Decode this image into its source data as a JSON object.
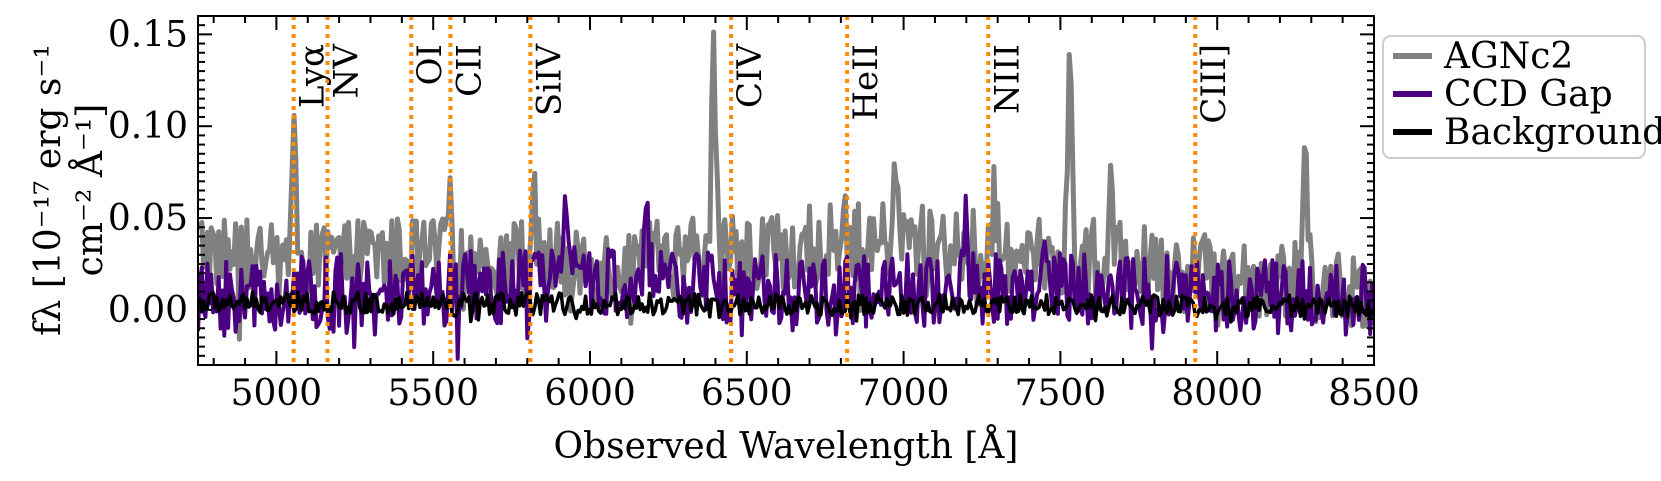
{
  "chart_data": {
    "type": "line",
    "xlabel": "Observed Wavelength [Å]",
    "ylabel_line1": "fλ [10⁻¹⁷ erg s⁻¹",
    "ylabel_line2": "cm⁻² Å⁻¹]",
    "xlim": [
      4750,
      8500
    ],
    "ylim": [
      -0.03,
      0.16
    ],
    "xticks": [
      5000,
      5500,
      6000,
      6500,
      7000,
      7500,
      8000,
      8500
    ],
    "yticks": [
      0.0,
      0.05,
      0.1,
      0.15
    ],
    "ytick_labels": [
      "0.00",
      "0.05",
      "0.10",
      "0.15"
    ],
    "legend_position": "outside-right",
    "series": [
      {
        "name": "AGNc2",
        "color": "#808080",
        "baseline": [
          [
            4750,
            0.035
          ],
          [
            5000,
            0.025
          ],
          [
            5300,
            0.03
          ],
          [
            5700,
            0.028
          ],
          [
            6100,
            0.025
          ],
          [
            6400,
            0.03
          ],
          [
            6700,
            0.035
          ],
          [
            7000,
            0.038
          ],
          [
            7300,
            0.032
          ],
          [
            7600,
            0.028
          ],
          [
            8000,
            0.02
          ],
          [
            8300,
            0.015
          ],
          [
            8500,
            0.01
          ]
        ],
        "noise": 0.018,
        "peaks": [
          [
            5055,
            0.11
          ],
          [
            5820,
            0.06
          ],
          [
            6395,
            0.137
          ],
          [
            7530,
            0.126
          ],
          [
            8280,
            0.099
          ],
          [
            6810,
            0.068
          ],
          [
            6975,
            0.068
          ],
          [
            7290,
            0.058
          ],
          [
            7660,
            0.065
          ],
          [
            5550,
            0.06
          ]
        ]
      },
      {
        "name": "CCD Gap",
        "color": "#4b0082",
        "baseline": [
          [
            4750,
            0.005
          ],
          [
            5200,
            0.01
          ],
          [
            5600,
            0.012
          ],
          [
            6000,
            0.015
          ],
          [
            6400,
            0.012
          ],
          [
            6800,
            0.01
          ],
          [
            7300,
            0.012
          ],
          [
            7700,
            0.01
          ],
          [
            8100,
            0.008
          ],
          [
            8500,
            0.005
          ]
        ],
        "noise": 0.017,
        "peaks": [
          [
            5925,
            0.05
          ],
          [
            6180,
            0.045
          ],
          [
            7200,
            0.045
          ],
          [
            7455,
            0.045
          ]
        ]
      },
      {
        "name": "Background",
        "color": "#000000",
        "baseline": [
          [
            4750,
            0.004
          ],
          [
            8500,
            0.002
          ]
        ],
        "noise": 0.005,
        "peaks": []
      }
    ],
    "emission_lines": [
      {
        "label": "Lyα",
        "x": 5055
      },
      {
        "label": "NV",
        "x": 5163
      },
      {
        "label": "OI",
        "x": 5430
      },
      {
        "label": "CII",
        "x": 5555
      },
      {
        "label": "SiIV",
        "x": 5810
      },
      {
        "label": "CIV",
        "x": 6450
      },
      {
        "label": "HeII",
        "x": 6820
      },
      {
        "label": "NIII",
        "x": 7270
      },
      {
        "label": "CIII]",
        "x": 7930
      }
    ],
    "emission_line_color": "#ff8c00"
  }
}
